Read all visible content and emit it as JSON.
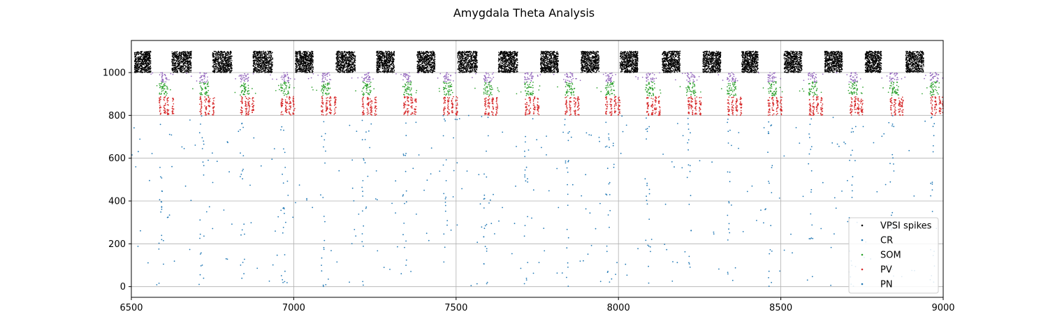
{
  "chart_data": {
    "type": "scatter",
    "title": "Amygdala Theta Analysis",
    "xlabel": "",
    "ylabel": "",
    "xlim": [
      6500,
      9000
    ],
    "ylim": [
      -50,
      1150
    ],
    "x_ticks": [
      6500,
      7000,
      7500,
      8000,
      8500,
      9000
    ],
    "y_ticks": [
      0,
      200,
      400,
      600,
      800,
      1000
    ],
    "grid": true,
    "legend_position": "lower-right",
    "theta_cycle_starts": [
      6585,
      6710,
      6835,
      6960,
      7085,
      7210,
      7335,
      7460,
      7585,
      7710,
      7835,
      7960,
      8085,
      8210,
      8335,
      8460,
      8585,
      8710,
      8835,
      8960
    ],
    "series": [
      {
        "name": "VPSI spikes",
        "color": "#000000",
        "neuron_range": [
          1000,
          1100
        ],
        "bursts": [
          [
            6510,
            6560
          ],
          [
            6625,
            6685
          ],
          [
            6750,
            6810
          ],
          [
            6875,
            6935
          ],
          [
            7005,
            7060
          ],
          [
            7130,
            7190
          ],
          [
            7255,
            7310
          ],
          [
            7380,
            7435
          ],
          [
            7505,
            7565
          ],
          [
            7630,
            7690
          ],
          [
            7760,
            7815
          ],
          [
            7885,
            7940
          ],
          [
            8005,
            8060
          ],
          [
            8135,
            8190
          ],
          [
            8260,
            8315
          ],
          [
            8380,
            8430
          ],
          [
            8510,
            8565
          ],
          [
            8635,
            8690
          ],
          [
            8760,
            8810
          ],
          [
            8885,
            8940
          ]
        ]
      },
      {
        "name": "CR",
        "color": "#1f77b4",
        "neuron_range": [
          0,
          800
        ],
        "pattern": "sparse-columns"
      },
      {
        "name": "SOM",
        "color": "#2ca02c",
        "neuron_range": [
          900,
          950
        ],
        "pattern": "theta-locked"
      },
      {
        "name": "PV",
        "color": "#d62728",
        "neuron_range": [
          800,
          890
        ],
        "pattern": "theta-locked"
      },
      {
        "name": "PN",
        "color": "#1f77b4",
        "neuron_range": [
          0,
          800
        ],
        "pattern": "sparse"
      }
    ],
    "extra_population": {
      "color": "#9467bd",
      "neuron_range": [
        950,
        1000
      ],
      "pattern": "theta-locked"
    }
  }
}
